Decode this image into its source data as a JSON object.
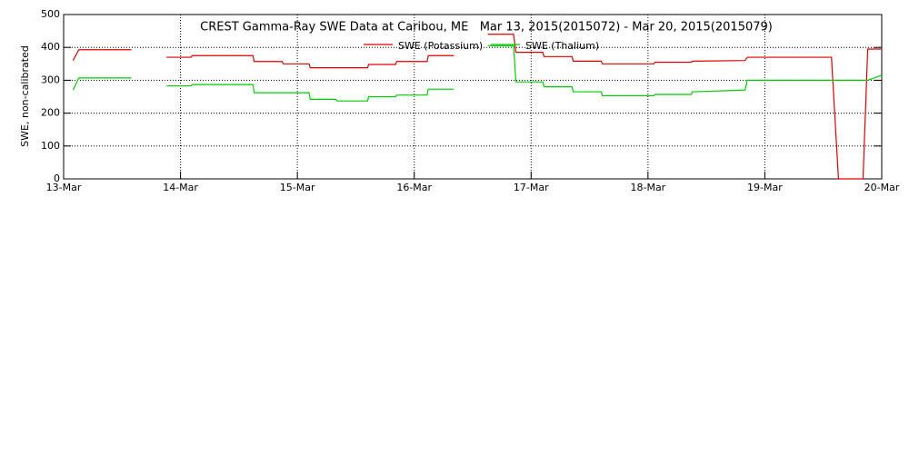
{
  "chart_data": {
    "type": "line",
    "title": "CREST Gamma-Ray SWE Data at Caribou, ME   Mar 13, 2015(2015072) - Mar 20, 2015(2015079)",
    "y_label": "SWE, non-calibrated",
    "xlim": [
      0,
      7
    ],
    "xticks": [
      {
        "value": 0,
        "label": "13-Mar"
      },
      {
        "value": 1,
        "label": "14-Mar"
      },
      {
        "value": 2,
        "label": "15-Mar"
      },
      {
        "value": 3,
        "label": "16-Mar"
      },
      {
        "value": 4,
        "label": "17-Mar"
      },
      {
        "value": 5,
        "label": "18-Mar"
      },
      {
        "value": 6,
        "label": "19-Mar"
      },
      {
        "value": 7,
        "label": "20-Mar"
      }
    ],
    "ylim": [
      0,
      500
    ],
    "yticks": [
      0,
      100,
      200,
      300,
      400,
      500
    ],
    "grid": true,
    "x": [
      0.08,
      0.13,
      0.58,
      0.73,
      0.88,
      1.09,
      1.1,
      1.62,
      1.63,
      1.87,
      1.88,
      2.1,
      2.11,
      2.33,
      2.34,
      2.6,
      2.61,
      2.84,
      2.85,
      3.11,
      3.12,
      3.34,
      3.5,
      3.63,
      3.85,
      3.87,
      4.1,
      4.11,
      4.35,
      4.36,
      4.6,
      4.61,
      5.05,
      5.06,
      5.37,
      5.38,
      5.83,
      5.85,
      6.57,
      6.63,
      6.84,
      6.88,
      7.0
    ],
    "series": [
      {
        "name": "SWE (Potassium)",
        "color": "#dd0000",
        "values": [
          360,
          393,
          393,
          null,
          370,
          370,
          375,
          375,
          357,
          357,
          350,
          350,
          338,
          338,
          338,
          338,
          348,
          348,
          357,
          357,
          375,
          375,
          null,
          440,
          440,
          385,
          385,
          372,
          372,
          358,
          358,
          350,
          350,
          355,
          355,
          358,
          360,
          370,
          370,
          0,
          0,
          395,
          395
        ]
      },
      {
        "name": "SWE (Thalium)",
        "color": "#00cc00",
        "values": [
          270,
          307,
          307,
          null,
          283,
          283,
          287,
          287,
          262,
          262,
          262,
          262,
          242,
          242,
          237,
          237,
          250,
          250,
          255,
          255,
          273,
          273,
          null,
          405,
          405,
          295,
          295,
          280,
          280,
          265,
          265,
          253,
          253,
          257,
          257,
          265,
          270,
          300,
          300,
          300,
          300,
          300,
          315
        ]
      }
    ]
  }
}
